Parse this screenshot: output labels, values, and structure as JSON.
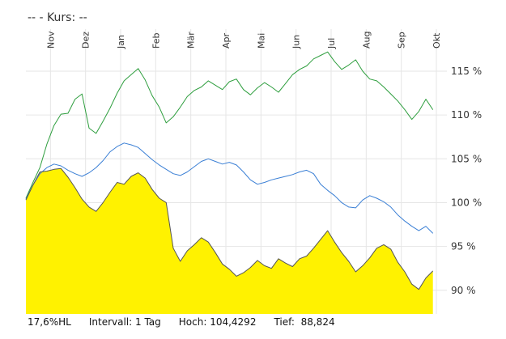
{
  "header": {
    "prefix": "--",
    "kurs_label": " - Kurs: --"
  },
  "footer": {
    "hl": "17,6%HL",
    "intervall": "Intervall: 1 Tag",
    "hoch": "Hoch: 104,4292",
    "tief": "Tief:  88,824"
  },
  "chart_data": {
    "type": "area",
    "x_tick_labels": [
      "Nov",
      "Dez",
      "Jan",
      "Feb",
      "Mär",
      "Apr",
      "Mai",
      "Jun",
      "Jul",
      "Aug",
      "Sep",
      "Okt"
    ],
    "y_tick_labels": [
      "115 %",
      "110 %",
      "105 %",
      "100 %",
      "95 %",
      "90 %"
    ],
    "y_ticks": [
      115,
      110,
      105,
      100,
      95,
      90
    ],
    "ylim": [
      87.3,
      119.8
    ],
    "xlim": [
      0,
      12
    ],
    "grid": true,
    "series": [
      {
        "color": "#2e9e3e",
        "x": [
          0,
          0.2,
          0.4,
          0.6,
          0.8,
          1.0,
          1.2,
          1.4,
          1.6,
          1.8,
          2.0,
          2.2,
          2.4,
          2.6,
          2.8,
          3.0,
          3.2,
          3.4,
          3.6,
          3.8,
          4.0,
          4.2,
          4.4,
          4.6,
          4.8,
          5.0,
          5.2,
          5.4,
          5.6,
          5.8,
          6.0,
          6.2,
          6.4,
          6.6,
          6.8,
          7.0,
          7.2,
          7.4,
          7.6,
          7.8,
          8.0,
          8.2,
          8.4,
          8.6,
          8.8,
          9.0,
          9.2,
          9.4,
          9.6,
          9.8,
          10.0,
          10.2,
          10.4,
          10.6,
          10.8,
          11.0,
          11.2,
          11.4,
          11.6
        ],
        "values": [
          100.5,
          102.3,
          104.0,
          106.7,
          108.8,
          110.1,
          110.2,
          111.8,
          112.4,
          108.5,
          107.9,
          109.3,
          110.8,
          112.5,
          113.9,
          114.6,
          115.3,
          114.0,
          112.2,
          110.9,
          109.1,
          109.8,
          110.9,
          112.1,
          112.8,
          113.2,
          113.9,
          113.4,
          112.9,
          113.8,
          114.1,
          112.9,
          112.3,
          113.1,
          113.7,
          113.2,
          112.6,
          113.6,
          114.6,
          115.2,
          115.6,
          116.4,
          116.8,
          117.2,
          116.1,
          115.2,
          115.7,
          116.3,
          115.0,
          114.1,
          113.9,
          113.2,
          112.4,
          111.6,
          110.6,
          109.5,
          110.4,
          111.8,
          110.6
        ]
      },
      {
        "color": "#3a7fd5",
        "x": [
          0,
          0.2,
          0.4,
          0.6,
          0.8,
          1.0,
          1.2,
          1.4,
          1.6,
          1.8,
          2.0,
          2.2,
          2.4,
          2.6,
          2.8,
          3.0,
          3.2,
          3.4,
          3.6,
          3.8,
          4.0,
          4.2,
          4.4,
          4.6,
          4.8,
          5.0,
          5.2,
          5.4,
          5.6,
          5.8,
          6.0,
          6.2,
          6.4,
          6.6,
          6.8,
          7.0,
          7.2,
          7.4,
          7.6,
          7.8,
          8.0,
          8.2,
          8.4,
          8.6,
          8.8,
          9.0,
          9.2,
          9.4,
          9.6,
          9.8,
          10.0,
          10.2,
          10.4,
          10.6,
          10.8,
          11.0,
          11.2,
          11.4,
          11.6
        ],
        "values": [
          100.4,
          102.0,
          103.3,
          104.0,
          104.4,
          104.2,
          103.7,
          103.3,
          103.0,
          103.4,
          104.0,
          104.8,
          105.8,
          106.4,
          106.8,
          106.6,
          106.3,
          105.6,
          104.9,
          104.3,
          103.8,
          103.3,
          103.1,
          103.5,
          104.1,
          104.7,
          105.0,
          104.7,
          104.4,
          104.6,
          104.3,
          103.5,
          102.6,
          102.1,
          102.3,
          102.6,
          102.8,
          103.0,
          103.2,
          103.5,
          103.7,
          103.3,
          102.1,
          101.4,
          100.8,
          100.0,
          99.5,
          99.4,
          100.3,
          100.8,
          100.5,
          100.1,
          99.5,
          98.6,
          97.9,
          97.3,
          96.8,
          97.3,
          96.5
        ]
      },
      {
        "color": "#555555",
        "fill": "#fff200",
        "x": [
          0,
          0.2,
          0.4,
          0.6,
          0.8,
          1.0,
          1.2,
          1.4,
          1.6,
          1.8,
          2.0,
          2.2,
          2.4,
          2.6,
          2.8,
          3.0,
          3.2,
          3.4,
          3.6,
          3.8,
          4.0,
          4.2,
          4.4,
          4.6,
          4.8,
          5.0,
          5.2,
          5.4,
          5.6,
          5.8,
          6.0,
          6.2,
          6.4,
          6.6,
          6.8,
          7.0,
          7.2,
          7.4,
          7.6,
          7.8,
          8.0,
          8.2,
          8.4,
          8.6,
          8.8,
          9.0,
          9.2,
          9.4,
          9.6,
          9.8,
          10.0,
          10.2,
          10.4,
          10.6,
          10.8,
          11.0,
          11.2,
          11.4,
          11.6
        ],
        "values": [
          100.3,
          102.0,
          103.5,
          103.6,
          103.8,
          103.9,
          102.9,
          101.7,
          100.4,
          99.5,
          99.0,
          100.0,
          101.2,
          102.3,
          102.1,
          103.0,
          103.4,
          102.8,
          101.5,
          100.5,
          100.0,
          94.8,
          93.3,
          94.5,
          95.2,
          96.0,
          95.5,
          94.3,
          93.0,
          92.4,
          91.6,
          92.0,
          92.6,
          93.4,
          92.8,
          92.5,
          93.6,
          93.1,
          92.7,
          93.6,
          93.9,
          94.8,
          95.8,
          96.8,
          95.5,
          94.3,
          93.3,
          92.1,
          92.8,
          93.7,
          94.8,
          95.2,
          94.7,
          93.2,
          92.1,
          90.7,
          90.1,
          91.4,
          92.2
        ]
      }
    ]
  }
}
